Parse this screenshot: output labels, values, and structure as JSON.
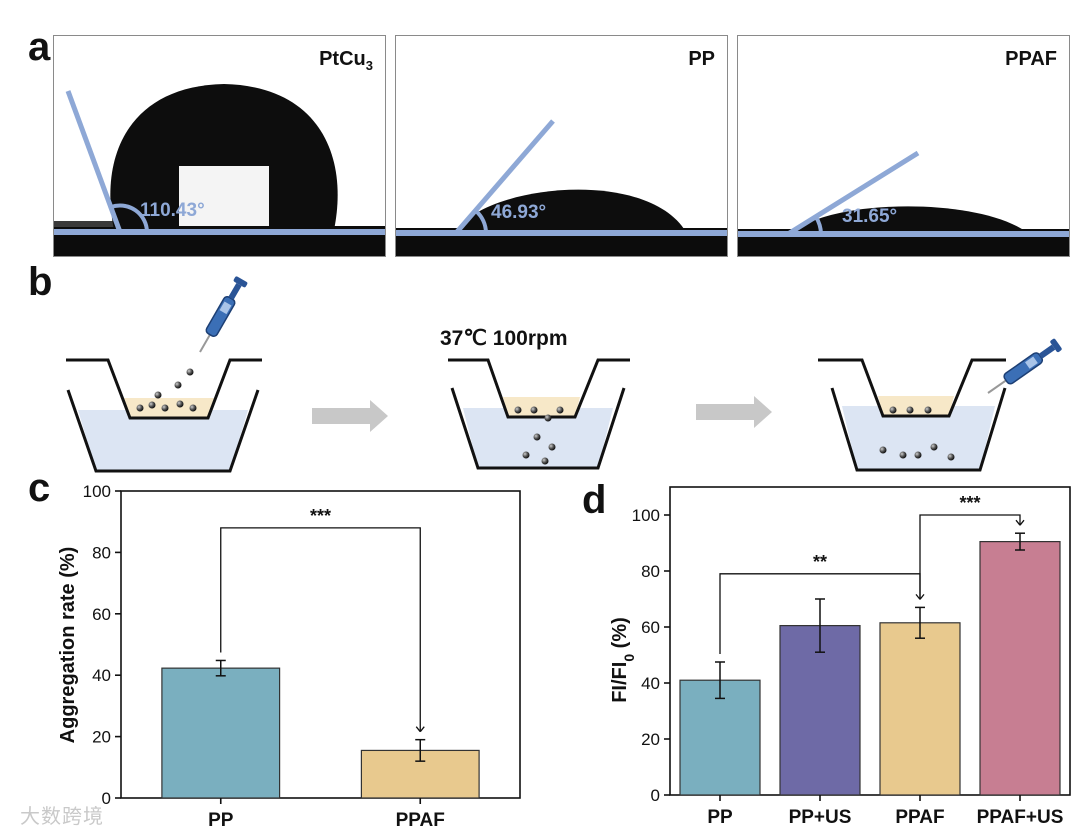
{
  "panels": {
    "a": "a",
    "b": "b",
    "c": "c",
    "d": "d"
  },
  "contact_angles": [
    {
      "title_main": "PtCu",
      "title_sub": "3",
      "angle": "110.43°"
    },
    {
      "title_main": "PP",
      "title_sub": "",
      "angle": "46.93°"
    },
    {
      "title_main": "PPAF",
      "title_sub": "",
      "angle": "31.65°"
    }
  ],
  "incubation": {
    "condition": "37℃ 100rpm"
  },
  "watermark": "大数跨境",
  "colors": {
    "line_blue": "#8ea8d6",
    "bar_teal": "#7aafbf",
    "bar_purple": "#6e6aa6",
    "bar_tan": "#e8c98e",
    "bar_pink": "#c77e92",
    "water": "#dce5f3",
    "culture": "#f7e8c8"
  },
  "chart_data": [
    {
      "type": "bar",
      "categories": [
        "PP",
        "PPAF"
      ],
      "values": [
        42.3,
        15.5
      ],
      "errors": [
        2.5,
        3.5
      ],
      "colors": [
        "#7aafbf",
        "#e8c98e"
      ],
      "ylabel": "Aggregation rate (%)",
      "xlabel": "",
      "ylim": [
        0,
        100
      ],
      "yticks": [
        0,
        20,
        40,
        60,
        80,
        100
      ],
      "significance": [
        {
          "from": 0,
          "to": 1,
          "label": "***",
          "level": 88
        }
      ]
    },
    {
      "type": "bar",
      "categories": [
        "PP",
        "PP+US",
        "PPAF",
        "PPAF+US"
      ],
      "values": [
        41,
        60.5,
        61.5,
        90.5
      ],
      "errors": [
        6.5,
        9.5,
        5.5,
        3.0
      ],
      "colors": [
        "#7aafbf",
        "#6e6aa6",
        "#e8c98e",
        "#c77e92"
      ],
      "ylabel_main": "FI/FI",
      "ylabel_sub": "0",
      "ylabel_unit": " (%)",
      "xlabel": "",
      "ylim": [
        0,
        110
      ],
      "yticks": [
        0,
        20,
        40,
        60,
        80,
        100
      ],
      "significance": [
        {
          "from": 0,
          "to": 2,
          "label": "**",
          "level": 79
        },
        {
          "from": 2,
          "to": 3,
          "label": "***",
          "level": 100
        }
      ]
    }
  ]
}
